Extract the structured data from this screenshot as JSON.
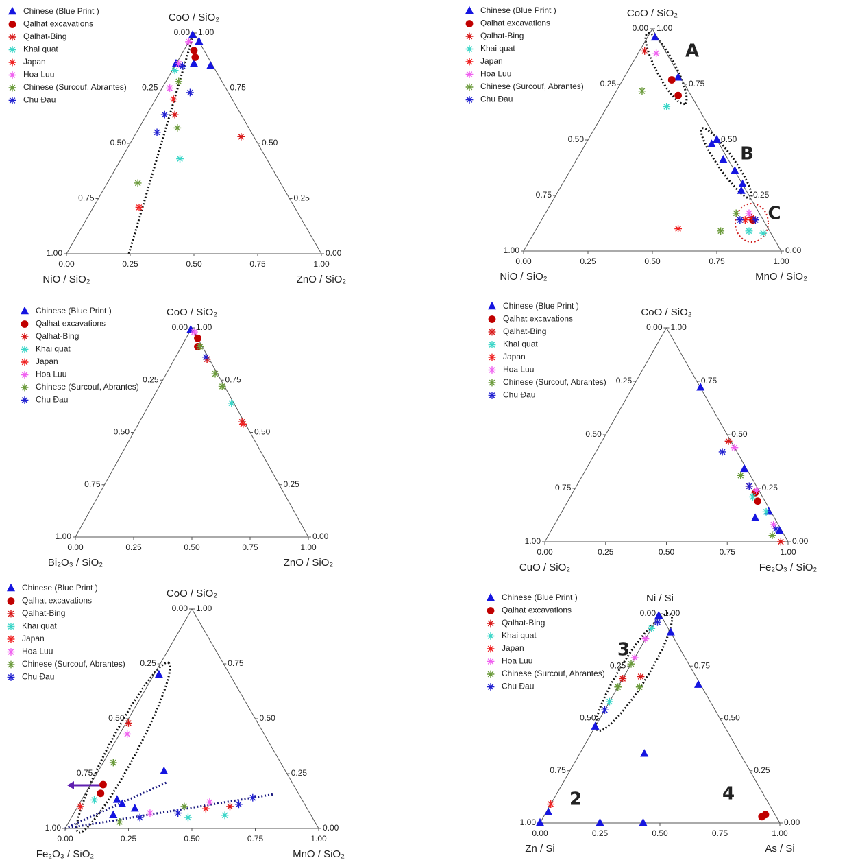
{
  "chart_data": [
    {
      "type": "ternary",
      "top_label": "CoO / SiO₂",
      "left_label": "NiO / SiO₂",
      "right_label": "ZnO / SiO₂",
      "ticks": [
        {
          "value": 0,
          "label": "0.00"
        },
        {
          "value": 0.25,
          "label": "0.25"
        },
        {
          "value": 0.5,
          "label": "0.50"
        },
        {
          "value": 0.75,
          "label": "0.75"
        },
        {
          "value": 1,
          "label": "1.00"
        }
      ],
      "series": [
        {
          "name": "Chinese (Blue Print )",
          "color": "#1515e0",
          "marker": "triangle",
          "top": [
            0.99,
            0.96,
            0.85,
            0.86,
            0.86
          ],
          "right": [
            0.0,
            0.04,
            0.14,
            0.0,
            0.07
          ]
        },
        {
          "name": "Qalhat excavations",
          "color": "#c00000",
          "marker": "circle",
          "top": [
            0.92,
            0.89
          ],
          "right": [
            0.04,
            0.06
          ]
        },
        {
          "name": "Qalhat-Bing",
          "color": "#d81818",
          "marker": "star",
          "top": [
            0.53,
            0.63
          ],
          "right": [
            0.42,
            0.11
          ]
        },
        {
          "name": "Khai quat",
          "color": "#3ad6c8",
          "marker": "star",
          "top": [
            0.43,
            0.83
          ],
          "right": [
            0.23,
            0.01
          ]
        },
        {
          "name": "Japan",
          "color": "#f02020",
          "marker": "star",
          "top": [
            0.21,
            0.7
          ],
          "right": [
            0.18,
            0.07
          ]
        },
        {
          "name": "Hoa Luu",
          "color": "#f060f0",
          "marker": "star",
          "top": [
            0.75,
            0.86,
            0.96
          ],
          "right": [
            0.03,
            0.01,
            0.0
          ]
        },
        {
          "name": "Chinese (Surcouf, Abrantes)",
          "color": "#6a9a3a",
          "marker": "star",
          "top": [
            0.32,
            0.57,
            0.78
          ],
          "right": [
            0.12,
            0.15,
            0.05
          ]
        },
        {
          "name": "Chu Đau",
          "color": "#2020d0",
          "marker": "star",
          "top": [
            0.55,
            0.63,
            0.73,
            0.85
          ],
          "right": [
            0.08,
            0.07,
            0.12,
            0.03
          ]
        }
      ]
    },
    {
      "type": "ternary",
      "top_label": "CoO / SiO₂",
      "left_label": "NiO / SiO₂",
      "right_label": "MnO / SiO₂",
      "ticks": [
        {
          "value": 0,
          "label": "0.00"
        },
        {
          "value": 0.25,
          "label": "0.25"
        },
        {
          "value": 0.5,
          "label": "0.50"
        },
        {
          "value": 0.75,
          "label": "0.75"
        },
        {
          "value": 1,
          "label": "1.00"
        }
      ],
      "annotations": [
        "A",
        "B",
        "C"
      ],
      "series": [
        {
          "name": "Chinese (Blue Print )",
          "color": "#1515e0",
          "marker": "triangle",
          "top": [
            0.96,
            0.78,
            0.48,
            0.41,
            0.36,
            0.3,
            0.27,
            0.5
          ],
          "right": [
            0.03,
            0.21,
            0.49,
            0.57,
            0.64,
            0.7,
            0.71,
            0.5
          ]
        },
        {
          "name": "Qalhat excavations",
          "color": "#c00000",
          "marker": "circle",
          "top": [
            0.77,
            0.7,
            0.14
          ],
          "right": [
            0.19,
            0.25,
            0.82
          ]
        },
        {
          "name": "Qalhat-Bing",
          "color": "#d81818",
          "marker": "star",
          "top": [
            0.9,
            0.15
          ],
          "right": [
            0.02,
            0.81
          ]
        },
        {
          "name": "Khai quat",
          "color": "#3ad6c8",
          "marker": "star",
          "top": [
            0.65,
            0.08,
            0.09
          ],
          "right": [
            0.23,
            0.89,
            0.83
          ]
        },
        {
          "name": "Japan",
          "color": "#f02020",
          "marker": "star",
          "top": [
            0.1,
            0.14
          ],
          "right": [
            0.55,
            0.79
          ]
        },
        {
          "name": "Hoa Luu",
          "color": "#f060f0",
          "marker": "star",
          "top": [
            0.89,
            0.17
          ],
          "right": [
            0.07,
            0.79
          ]
        },
        {
          "name": "Chinese (Surcouf, Abrantes)",
          "color": "#6a9a3a",
          "marker": "star",
          "top": [
            0.72,
            0.09,
            0.17
          ],
          "right": [
            0.1,
            0.72,
            0.74
          ]
        },
        {
          "name": "Chu Đau",
          "color": "#2020d0",
          "marker": "star",
          "top": [
            0.14,
            0.14
          ],
          "right": [
            0.77,
            0.83
          ]
        }
      ]
    },
    {
      "type": "ternary",
      "top_label": "CoO / SiO₂",
      "left_label": "Bi₂O₃ / SiO₂",
      "right_label": "ZnO / SiO₂",
      "ticks": [
        {
          "value": 0,
          "label": "0.00"
        },
        {
          "value": 0.25,
          "label": "0.25"
        },
        {
          "value": 0.5,
          "label": "0.50"
        },
        {
          "value": 0.75,
          "label": "0.75"
        },
        {
          "value": 1,
          "label": "1.00"
        }
      ],
      "series": [
        {
          "name": "Chinese (Blue Print )",
          "color": "#1515e0",
          "marker": "triangle",
          "top": [
            0.99
          ],
          "right": [
            0.0
          ]
        },
        {
          "name": "Qalhat excavations",
          "color": "#c00000",
          "marker": "circle",
          "top": [
            0.95,
            0.91
          ],
          "right": [
            0.05,
            0.07
          ]
        },
        {
          "name": "Qalhat-Bing",
          "color": "#d81818",
          "marker": "star",
          "top": [
            0.55,
            0.85
          ],
          "right": [
            0.44,
            0.14
          ]
        },
        {
          "name": "Khai quat",
          "color": "#3ad6c8",
          "marker": "star",
          "top": [
            0.64
          ],
          "right": [
            0.35
          ]
        },
        {
          "name": "Japan",
          "color": "#f02020",
          "marker": "star",
          "top": [
            0.54
          ],
          "right": [
            0.45
          ]
        },
        {
          "name": "Hoa Luu",
          "color": "#f060f0",
          "marker": "star",
          "top": [
            0.98
          ],
          "right": [
            0.02
          ]
        },
        {
          "name": "Chinese (Surcouf, Abrantes)",
          "color": "#6a9a3a",
          "marker": "star",
          "top": [
            0.78,
            0.72,
            0.91
          ],
          "right": [
            0.21,
            0.27,
            0.08
          ]
        },
        {
          "name": "Chu Đau",
          "color": "#2020d0",
          "marker": "star",
          "top": [
            0.86
          ],
          "right": [
            0.13
          ]
        }
      ]
    },
    {
      "type": "ternary",
      "top_label": "CoO / SiO₂",
      "left_label": "CuO / SiO₂",
      "right_label": "Fe₂O₃ / SiO₂",
      "ticks": [
        {
          "value": 0,
          "label": "0.00"
        },
        {
          "value": 0.25,
          "label": "0.25"
        },
        {
          "value": 0.5,
          "label": "0.50"
        },
        {
          "value": 0.75,
          "label": "0.75"
        },
        {
          "value": 1,
          "label": "1.00"
        }
      ],
      "series": [
        {
          "name": "Chinese (Blue Print )",
          "color": "#1515e0",
          "marker": "triangle",
          "top": [
            0.72,
            0.34,
            0.11,
            0.05,
            0.14
          ],
          "right": [
            0.28,
            0.65,
            0.81,
            0.94,
            0.85
          ]
        },
        {
          "name": "Qalhat excavations",
          "color": "#c00000",
          "marker": "circle",
          "top": [
            0.23,
            0.19
          ],
          "right": [
            0.75,
            0.78
          ]
        },
        {
          "name": "Qalhat-Bing",
          "color": "#d81818",
          "marker": "star",
          "top": [
            0.47,
            0.0
          ],
          "right": [
            0.52,
            0.97
          ]
        },
        {
          "name": "Khai quat",
          "color": "#3ad6c8",
          "marker": "star",
          "top": [
            0.14,
            0.21
          ],
          "right": [
            0.84,
            0.75
          ]
        },
        {
          "name": "Japan",
          "color": "#f02020",
          "marker": "star",
          "top": [
            0.26
          ],
          "right": [
            0.71
          ]
        },
        {
          "name": "Hoa Luu",
          "color": "#f060f0",
          "marker": "star",
          "top": [
            0.44,
            0.24,
            0.08
          ],
          "right": [
            0.56,
            0.75,
            0.9
          ]
        },
        {
          "name": "Chinese (Surcouf, Abrantes)",
          "color": "#6a9a3a",
          "marker": "star",
          "top": [
            0.31,
            0.03
          ],
          "right": [
            0.65,
            0.92
          ]
        },
        {
          "name": "Chu Đau",
          "color": "#2020d0",
          "marker": "star",
          "top": [
            0.42,
            0.26,
            0.06
          ],
          "right": [
            0.52,
            0.71,
            0.92
          ]
        }
      ]
    },
    {
      "type": "ternary",
      "top_label": "CoO / SiO₂",
      "left_label": "Fe₂O₃ / SiO₂",
      "right_label": "MnO / SiO₂",
      "ticks": [
        {
          "value": 0,
          "label": "0.00"
        },
        {
          "value": 0.25,
          "label": "0.25"
        },
        {
          "value": 0.5,
          "label": "0.50"
        },
        {
          "value": 0.75,
          "label": "0.75"
        },
        {
          "value": 1,
          "label": "1.00"
        }
      ],
      "series": [
        {
          "name": "Chinese (Blue Print )",
          "color": "#1515e0",
          "marker": "triangle",
          "top": [
            0.7,
            0.26,
            0.13,
            0.11,
            0.06,
            0.09
          ],
          "right": [
            0.02,
            0.26,
            0.14,
            0.17,
            0.16,
            0.23
          ]
        },
        {
          "name": "Qalhat excavations",
          "color": "#c00000",
          "marker": "circle",
          "top": [
            0.2,
            0.16
          ],
          "right": [
            0.05,
            0.06
          ]
        },
        {
          "name": "Qalhat-Bing",
          "color": "#d81818",
          "marker": "star",
          "top": [
            0.48,
            0.1
          ],
          "right": [
            0.01,
            0.6
          ]
        },
        {
          "name": "Khai quat",
          "color": "#3ad6c8",
          "marker": "star",
          "top": [
            0.13,
            0.05,
            0.06
          ],
          "right": [
            0.05,
            0.46,
            0.6
          ]
        },
        {
          "name": "Japan",
          "color": "#f02020",
          "marker": "star",
          "top": [
            0.1,
            0.09
          ],
          "right": [
            0.01,
            0.51
          ]
        },
        {
          "name": "Hoa Luu",
          "color": "#f060f0",
          "marker": "star",
          "top": [
            0.43,
            0.07,
            0.12
          ],
          "right": [
            0.03,
            0.3,
            0.51
          ]
        },
        {
          "name": "Chinese (Surcouf, Abrantes)",
          "color": "#6a9a3a",
          "marker": "star",
          "top": [
            0.3,
            0.1,
            0.03
          ],
          "right": [
            0.04,
            0.42,
            0.2
          ]
        },
        {
          "name": "Chu Đau",
          "color": "#2020d0",
          "marker": "star",
          "top": [
            0.05,
            0.07,
            0.11,
            0.14
          ],
          "right": [
            0.27,
            0.41,
            0.63,
            0.67
          ]
        }
      ]
    },
    {
      "type": "ternary",
      "top_label": "Ni / Si",
      "left_label": "Zn / Si",
      "right_label": "As / Si",
      "ticks": [
        {
          "value": 0,
          "label": "0.00"
        },
        {
          "value": 0.25,
          "label": "0.25"
        },
        {
          "value": 0.5,
          "label": "0.50"
        },
        {
          "value": 0.75,
          "label": "0.75"
        },
        {
          "value": 1,
          "label": "1.00"
        }
      ],
      "annotations": [
        "3",
        "2",
        "4"
      ],
      "series": [
        {
          "name": "Chinese (Blue Print )",
          "color": "#1515e0",
          "marker": "triangle",
          "top": [
            0.99,
            0.91,
            0.66,
            0.46,
            0.33,
            0.05,
            0.0,
            0.0,
            0.0
          ],
          "right": [
            0.0,
            0.09,
            0.33,
            0.0,
            0.27,
            0.01,
            0.25,
            0.43,
            0.0
          ]
        },
        {
          "name": "Qalhat excavations",
          "color": "#c00000",
          "marker": "circle",
          "top": [
            0.03,
            0.04
          ],
          "right": [
            0.91,
            0.92
          ]
        },
        {
          "name": "Qalhat-Bing",
          "color": "#d81818",
          "marker": "star",
          "top": [
            0.7,
            0.69
          ],
          "right": [
            0.07,
            0.0
          ]
        },
        {
          "name": "Khai quat",
          "color": "#3ad6c8",
          "marker": "star",
          "top": [
            0.93,
            0.58
          ],
          "right": [
            0.0,
            0.0
          ]
        },
        {
          "name": "Japan",
          "color": "#f02020",
          "marker": "star",
          "top": [
            0.09
          ],
          "right": [
            0.0
          ]
        },
        {
          "name": "Hoa Luu",
          "color": "#f060f0",
          "marker": "star",
          "top": [
            0.88,
            0.79
          ],
          "right": [
            0.0,
            0.0
          ]
        },
        {
          "name": "Chinese (Surcouf, Abrantes)",
          "color": "#6a9a3a",
          "marker": "star",
          "top": [
            0.76,
            0.65,
            0.65
          ],
          "right": [
            0.0,
            0.0,
            0.09
          ]
        },
        {
          "name": "Chu Đau",
          "color": "#2020d0",
          "marker": "star",
          "top": [
            0.54,
            0.96
          ],
          "right": [
            0.0,
            0.01
          ]
        }
      ]
    }
  ]
}
